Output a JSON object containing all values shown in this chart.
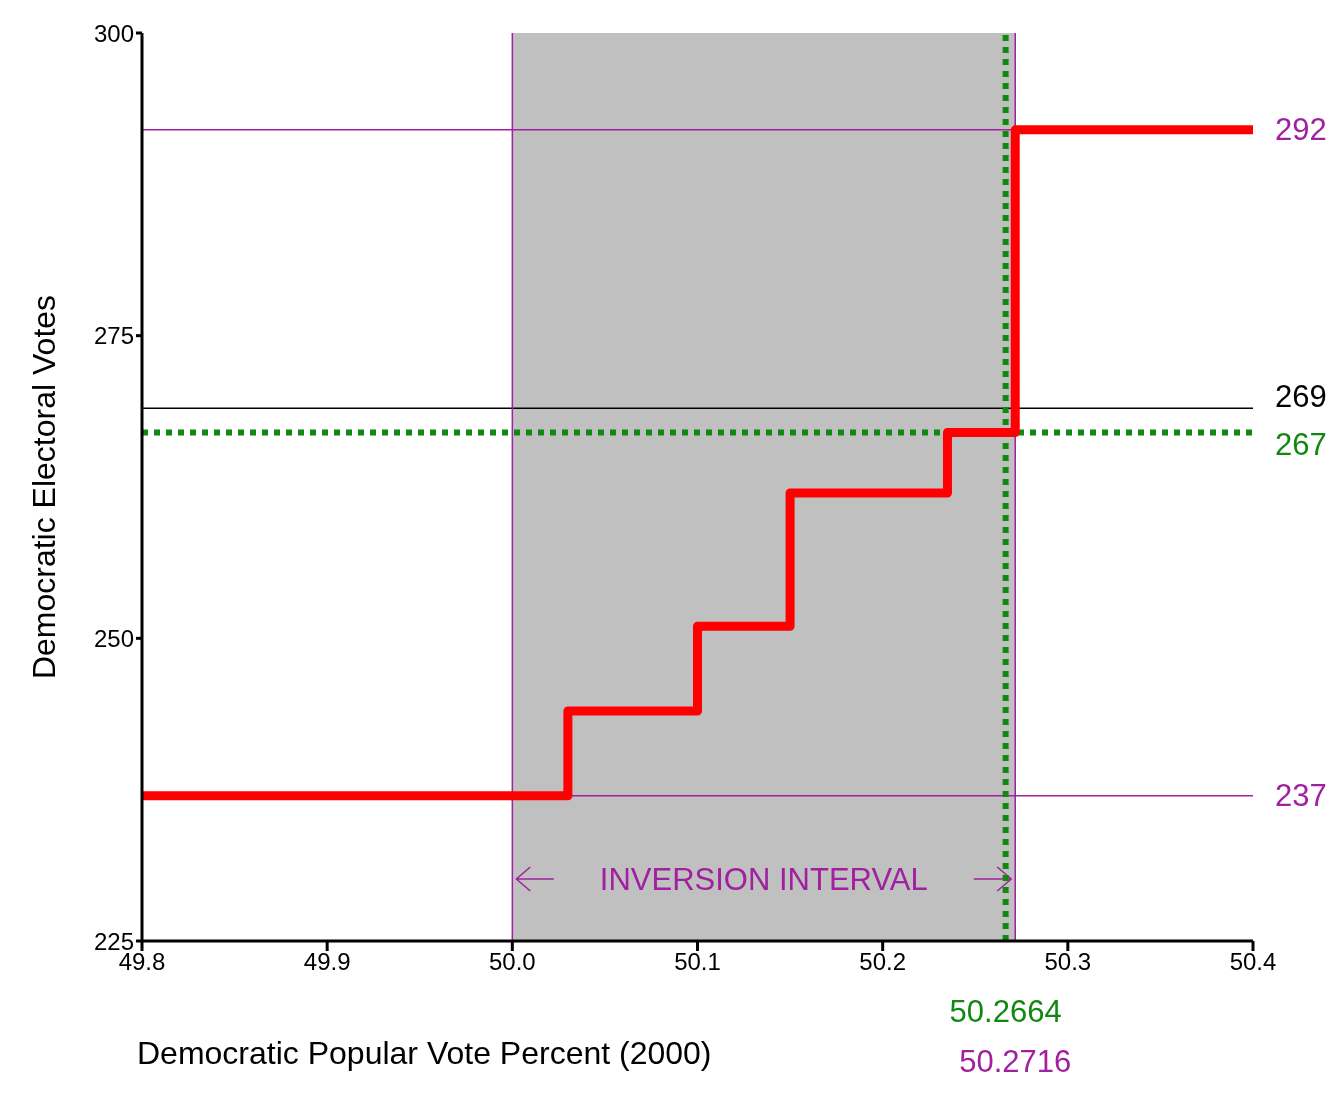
{
  "chart_data": {
    "type": "step",
    "xlabel": "Democratic Popular Vote Percent (2000)",
    "ylabel": "Democratic Electoral Votes",
    "x": [
      49.8,
      50.03,
      50.1,
      50.15,
      50.235,
      50.2716,
      50.4
    ],
    "series": [
      {
        "color": "#ff0000",
        "values": [
          237,
          244,
          251,
          262,
          267,
          292,
          292
        ]
      }
    ],
    "xlim": [
      49.8,
      50.4
    ],
    "xticks": [
      49.8,
      49.9,
      {
        "value": 50,
        "label": "50.0"
      },
      50.1,
      50.2,
      50.3,
      50.4
    ],
    "ylim": [
      225,
      300
    ],
    "yticks": [
      225,
      250,
      275,
      300
    ],
    "grid": false,
    "legend": false,
    "marker": "none",
    "line_style": "solid",
    "bands": [
      {
        "axis": "x",
        "from": 50,
        "to": 50.2716,
        "label": "INVERSION INTERVAL",
        "color": "#c0c0c0"
      }
    ],
    "ref_lines": [
      {
        "axis": "y",
        "value": 292,
        "label": "292",
        "color": "#a020a0",
        "line_style": "solid"
      },
      {
        "axis": "y",
        "value": 269,
        "label": "269",
        "color": "#000000",
        "line_style": "solid"
      },
      {
        "axis": "y",
        "value": 267,
        "label": "267",
        "color": "#118811",
        "line_style": "dotted"
      },
      {
        "axis": "y",
        "value": 237,
        "label": "237",
        "color": "#a020a0",
        "line_style": "solid"
      },
      {
        "axis": "x",
        "value": 50,
        "label": null,
        "color": "#a020a0",
        "line_style": "solid"
      },
      {
        "axis": "x",
        "value": 50.2664,
        "label": "50.2664",
        "color": "#118811",
        "line_style": "dotted"
      },
      {
        "axis": "x",
        "value": 50.2716,
        "label": "50.2716",
        "color": "#a020a0",
        "line_style": "solid"
      }
    ]
  }
}
